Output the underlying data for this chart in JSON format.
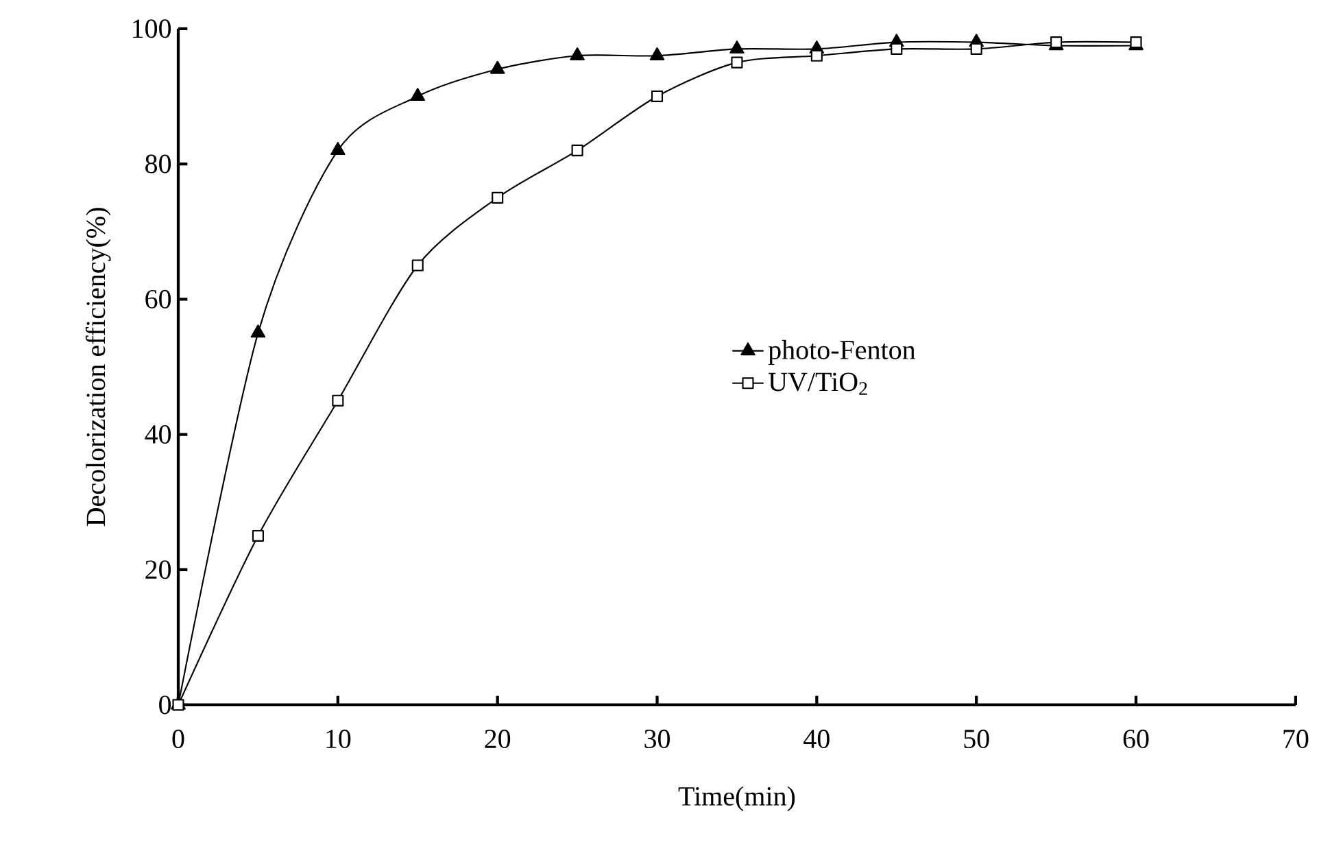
{
  "chart_data": {
    "type": "line",
    "xlabel": "Time(min)",
    "ylabel": "Decolorization efficiency(%)",
    "x": [
      0,
      5,
      10,
      15,
      20,
      25,
      30,
      35,
      40,
      45,
      50,
      55,
      60
    ],
    "series": [
      {
        "name": "photo-Fenton",
        "color": "#000000",
        "marker": "triangle",
        "values": [
          0,
          55,
          82,
          90,
          94,
          96,
          96,
          97,
          97,
          98,
          98,
          97.5,
          97.5
        ]
      },
      {
        "name": "UV/TiO$_{2}$",
        "color": "#000000",
        "marker": "square",
        "values": [
          0,
          25,
          45,
          65,
          75,
          82,
          90,
          95,
          96,
          97,
          97,
          98,
          98
        ]
      }
    ],
    "xlim": [
      0,
      70
    ],
    "ylim": [
      0,
      100
    ],
    "xticks": [
      0,
      10,
      20,
      30,
      40,
      50,
      60,
      70
    ],
    "yticks": [
      0,
      20,
      40,
      60,
      80,
      100
    ],
    "grid": false,
    "legend": "right",
    "line_style": "solid"
  }
}
